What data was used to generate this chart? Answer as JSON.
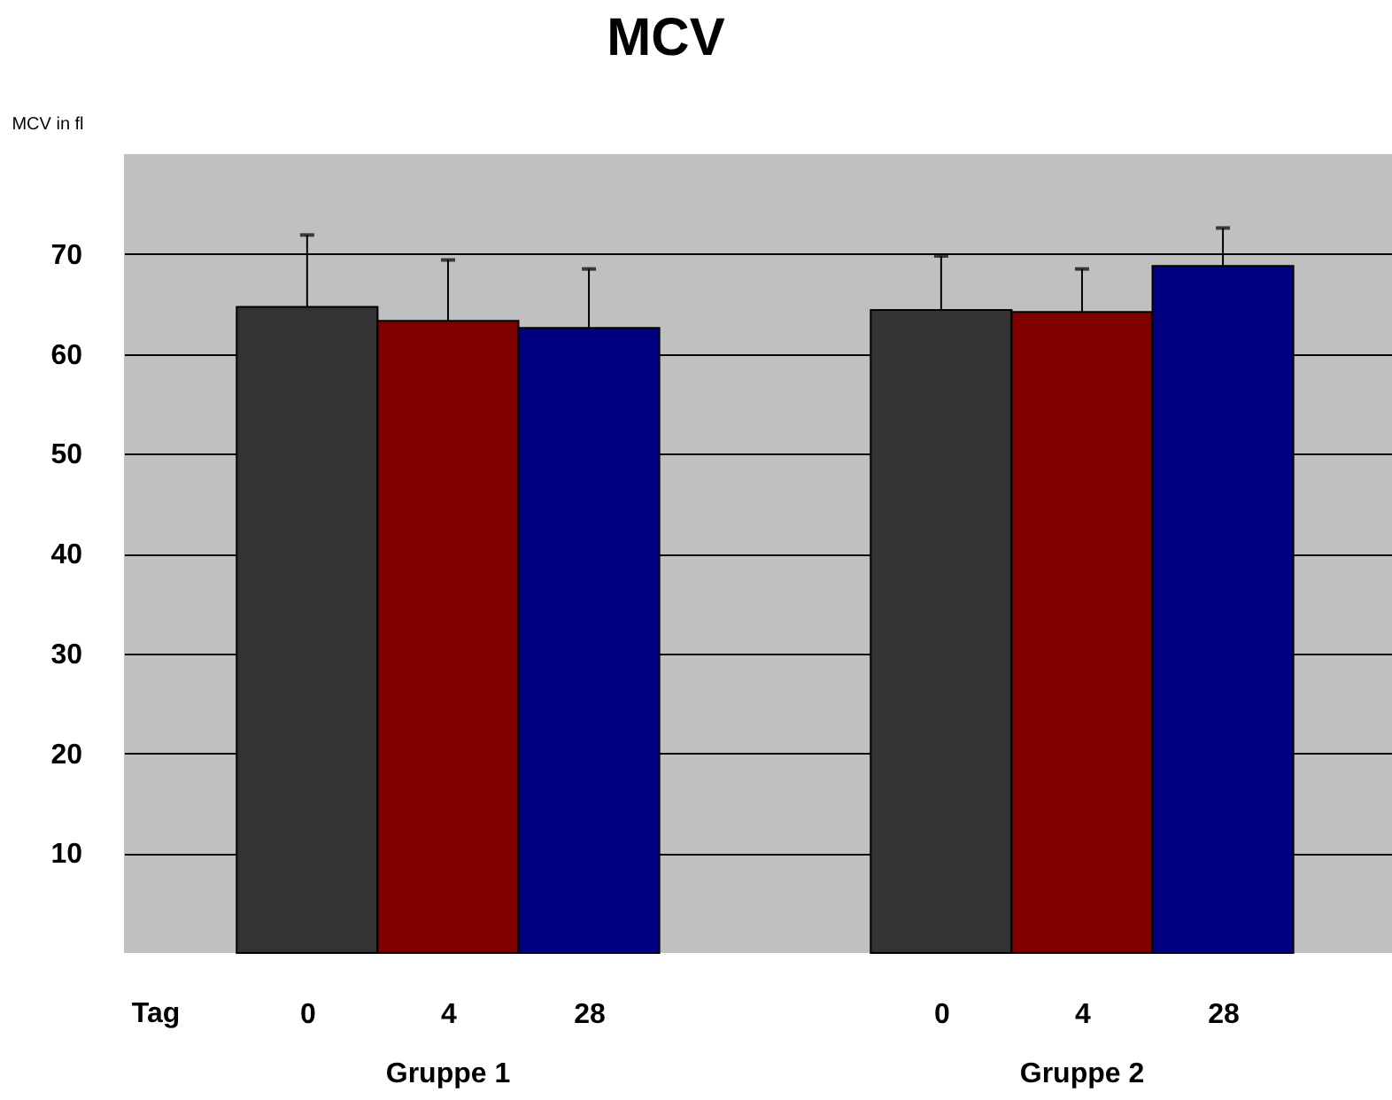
{
  "chart_data": {
    "type": "bar",
    "title": "MCV",
    "ylabel": "MCV in fl",
    "xlabel": "Tag",
    "categories": [
      "0",
      "4",
      "28",
      "0",
      "4",
      "28"
    ],
    "values": [
      64.7,
      63.3,
      62.6,
      64.4,
      64.2,
      68.8
    ],
    "errors": [
      [
        64.7,
        71.9
      ],
      [
        63.3,
        69.4
      ],
      [
        62.6,
        68.5
      ],
      [
        64.4,
        69.8
      ],
      [
        64.2,
        68.5
      ],
      [
        68.8,
        72.6
      ]
    ],
    "colors": [
      "#333333",
      "#800000",
      "#000080",
      "#333333",
      "#800000",
      "#000080"
    ],
    "annotations": [
      "Gruppe 1",
      "Gruppe 2"
    ],
    "ylim": [
      0,
      80
    ],
    "yticks": [
      10,
      20,
      30,
      40,
      50,
      60,
      70
    ],
    "grid": "y"
  }
}
